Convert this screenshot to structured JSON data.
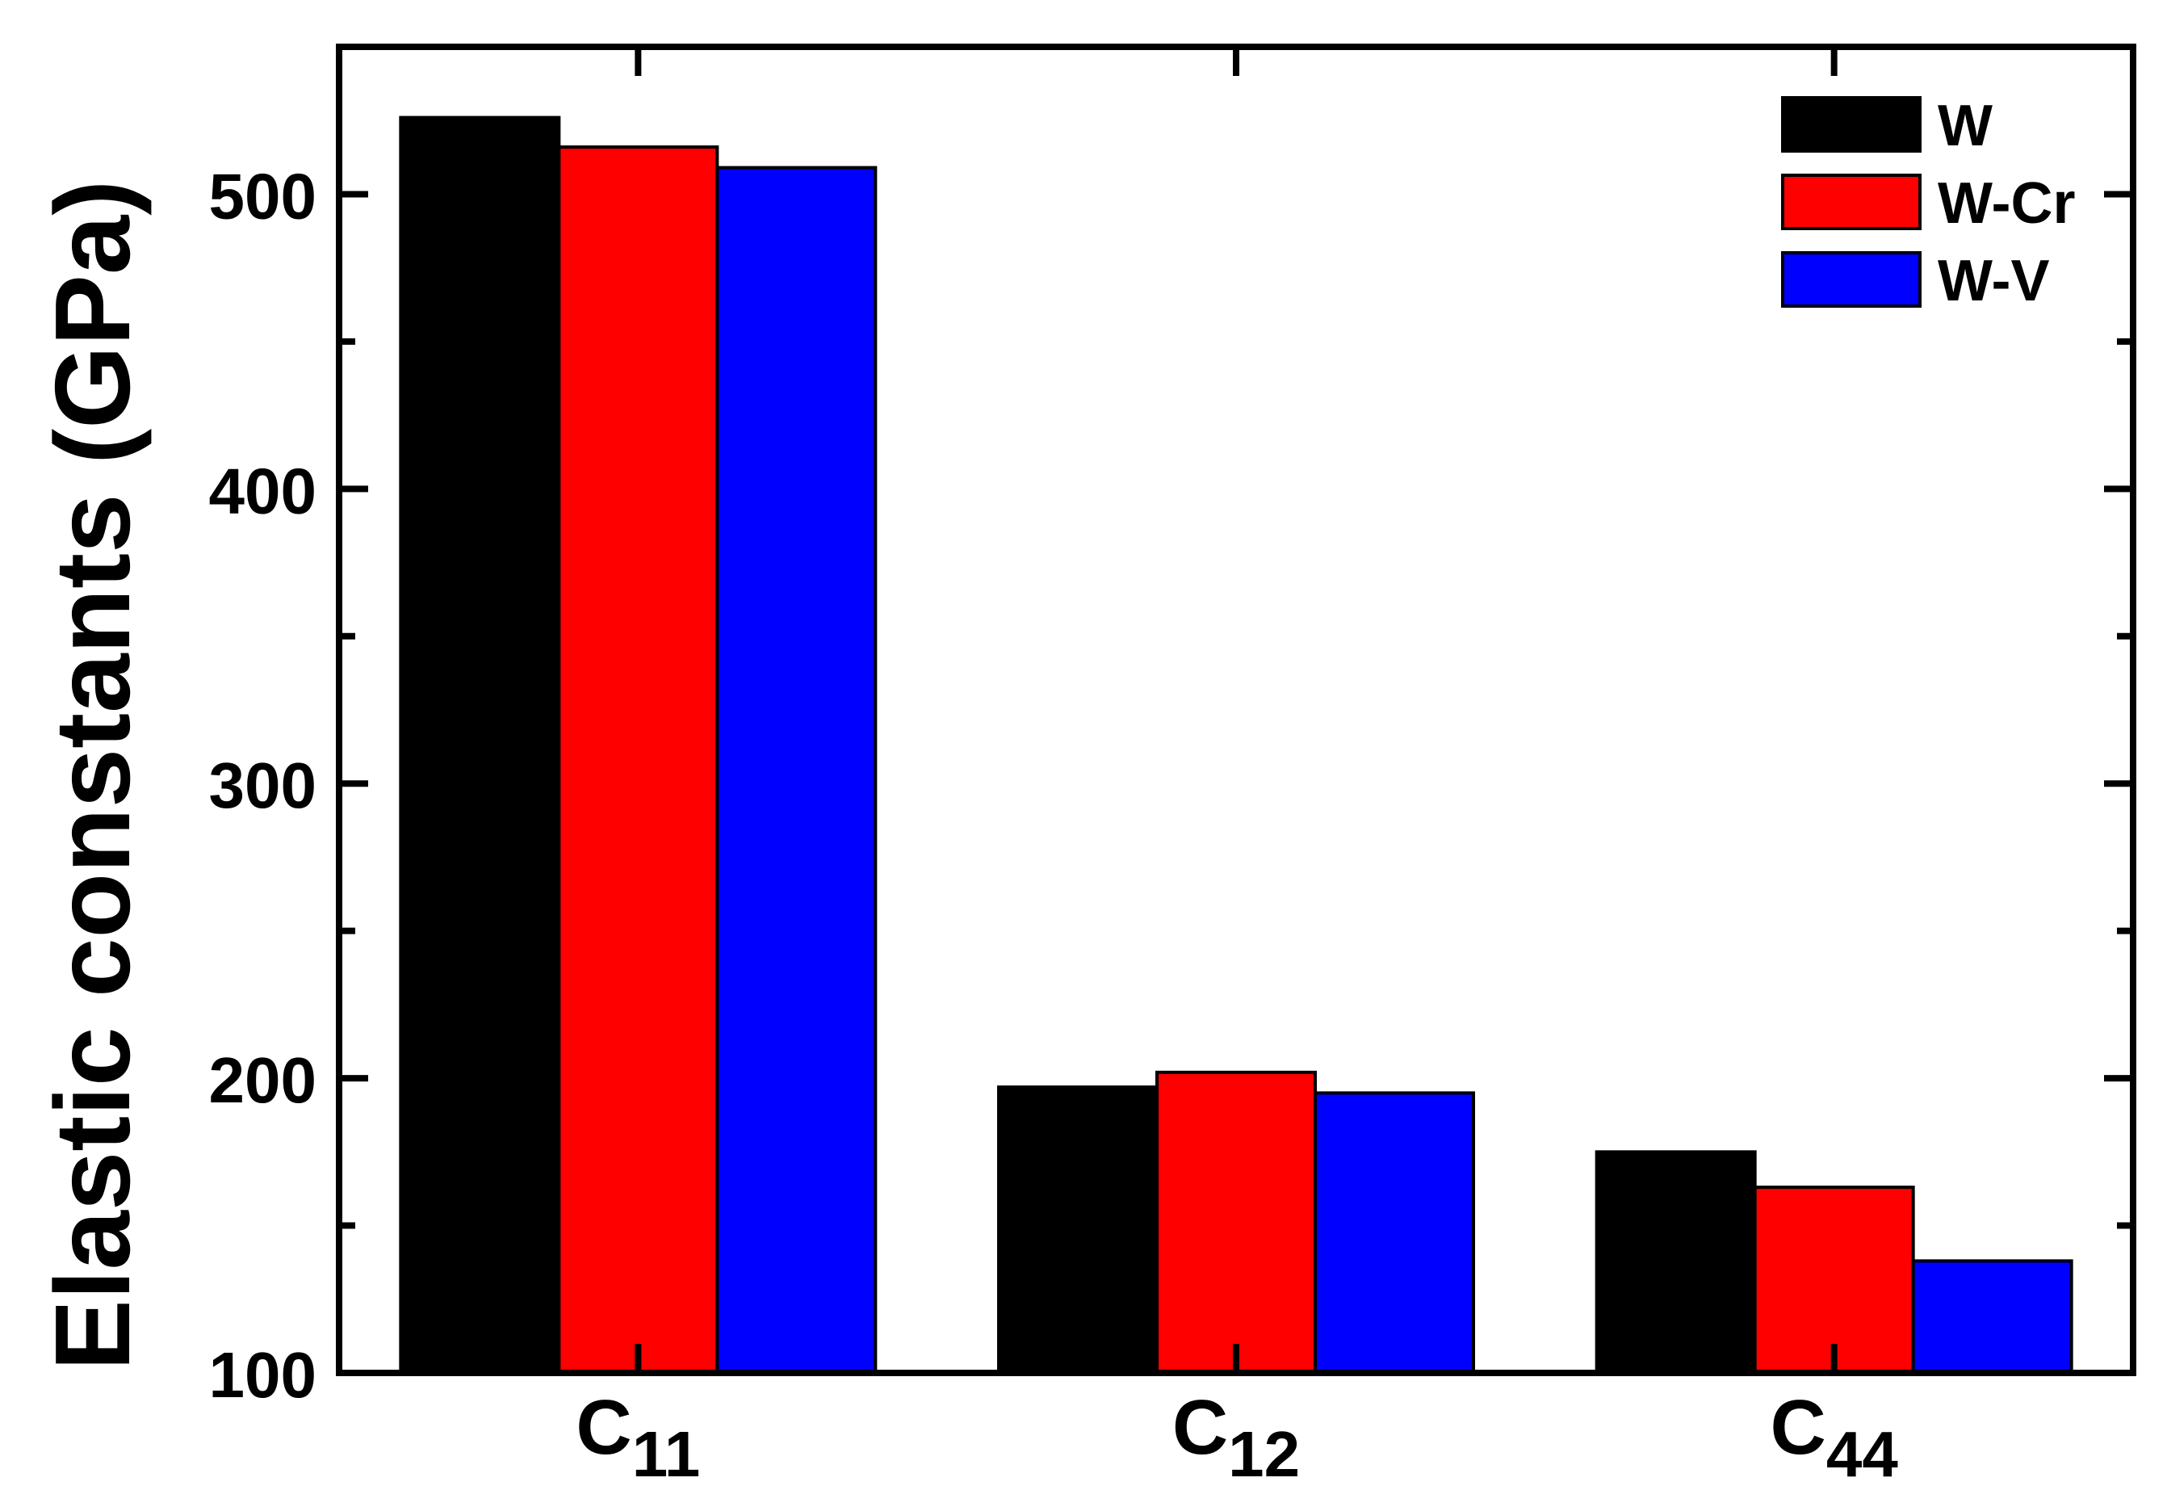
{
  "chart_data": {
    "type": "bar",
    "ylabel": "Elastic constants (GPa)",
    "xlabel": "",
    "ylim": [
      100,
      550
    ],
    "yticks": [
      100,
      200,
      300,
      400,
      500
    ],
    "categories": [
      {
        "main": "C",
        "sub": "11"
      },
      {
        "main": "C",
        "sub": "12"
      },
      {
        "main": "C",
        "sub": "44"
      }
    ],
    "series": [
      {
        "name": "W",
        "color": "#000000",
        "values": [
          526,
          197,
          175
        ]
      },
      {
        "name": "W-Cr",
        "color": "#ff0000",
        "values": [
          516,
          202,
          163
        ]
      },
      {
        "name": "W-V",
        "color": "#0000ff",
        "values": [
          509,
          195,
          138
        ]
      }
    ],
    "legend": "top-right",
    "grid": false
  }
}
